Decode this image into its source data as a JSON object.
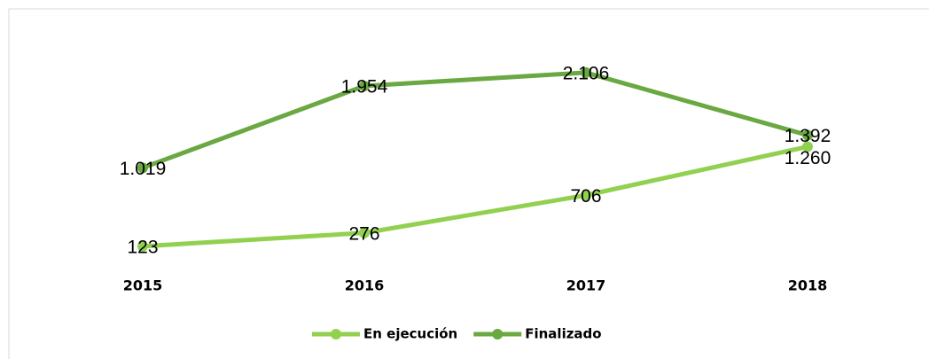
{
  "chart_data": {
    "type": "line",
    "categories": [
      "2015",
      "2016",
      "2017",
      "2018"
    ],
    "series": [
      {
        "name": "En ejecución",
        "color": "#92d050",
        "values": [
          123,
          276,
          706,
          1260
        ],
        "value_labels": [
          "123",
          "276",
          "706",
          "1.260"
        ]
      },
      {
        "name": "Finalizado",
        "color": "#6aa842",
        "values": [
          1019,
          1954,
          2106,
          1392
        ],
        "value_labels": [
          "1.019",
          "1.954",
          "2.106",
          "1.392"
        ]
      }
    ],
    "ylim": [
      0,
      2500
    ],
    "legend": "bottom"
  }
}
